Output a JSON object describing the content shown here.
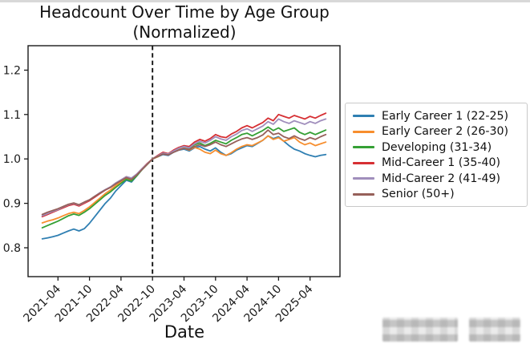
{
  "chart_data": {
    "type": "line",
    "title": "Headcount Over Time by Age Group",
    "subtitle": "(Normalized)",
    "xlabel": "Date",
    "ylabel": "",
    "ylim": [
      0.735,
      1.255
    ],
    "yticks": [
      0.8,
      0.9,
      1.0,
      1.1,
      1.2
    ],
    "grid": false,
    "legend_position": "right-outside",
    "x": [
      "2021-01",
      "2021-02",
      "2021-03",
      "2021-04",
      "2021-05",
      "2021-06",
      "2021-07",
      "2021-08",
      "2021-09",
      "2021-10",
      "2021-11",
      "2021-12",
      "2022-01",
      "2022-02",
      "2022-03",
      "2022-04",
      "2022-05",
      "2022-06",
      "2022-07",
      "2022-08",
      "2022-09",
      "2022-10",
      "2022-11",
      "2022-12",
      "2023-01",
      "2023-02",
      "2023-03",
      "2023-04",
      "2023-05",
      "2023-06",
      "2023-07",
      "2023-08",
      "2023-09",
      "2023-10",
      "2023-11",
      "2023-12",
      "2024-01",
      "2024-02",
      "2024-03",
      "2024-04",
      "2024-05",
      "2024-06",
      "2024-07",
      "2024-08",
      "2024-09",
      "2024-10",
      "2024-11",
      "2024-12",
      "2025-01",
      "2025-02",
      "2025-03",
      "2025-04",
      "2025-05",
      "2025-06",
      "2025-07"
    ],
    "xtick_labels": [
      "2021-04",
      "2021-10",
      "2022-04",
      "2022-10",
      "2023-04",
      "2023-10",
      "2024-04",
      "2024-10",
      "2025-04"
    ],
    "xtick_indices": [
      3,
      9,
      15,
      21,
      27,
      33,
      39,
      45,
      51
    ],
    "reference_line": {
      "type": "vertical-dashed",
      "x_index": 21,
      "x_label": "2022-10",
      "color": "#111111"
    },
    "series": [
      {
        "name": "Early Career 1 (22-25)",
        "color": "#2f7fb2",
        "values": [
          0.82,
          0.822,
          0.825,
          0.828,
          0.833,
          0.838,
          0.842,
          0.838,
          0.843,
          0.855,
          0.87,
          0.885,
          0.9,
          0.912,
          0.928,
          0.94,
          0.952,
          0.948,
          0.962,
          0.976,
          0.988,
          1.0,
          1.005,
          1.01,
          1.008,
          1.015,
          1.02,
          1.022,
          1.018,
          1.025,
          1.028,
          1.022,
          1.018,
          1.025,
          1.015,
          1.008,
          1.012,
          1.02,
          1.025,
          1.03,
          1.028,
          1.035,
          1.042,
          1.052,
          1.046,
          1.05,
          1.04,
          1.03,
          1.022,
          1.018,
          1.012,
          1.008,
          1.005,
          1.008,
          1.01
        ]
      },
      {
        "name": "Early Career 2 (26-30)",
        "color": "#f78e2e",
        "values": [
          0.856,
          0.86,
          0.863,
          0.867,
          0.872,
          0.877,
          0.88,
          0.877,
          0.884,
          0.892,
          0.902,
          0.912,
          0.922,
          0.93,
          0.94,
          0.948,
          0.956,
          0.953,
          0.964,
          0.976,
          0.988,
          1.0,
          1.005,
          1.012,
          1.01,
          1.016,
          1.021,
          1.024,
          1.02,
          1.026,
          1.022,
          1.015,
          1.012,
          1.02,
          1.012,
          1.008,
          1.014,
          1.022,
          1.028,
          1.032,
          1.03,
          1.036,
          1.042,
          1.052,
          1.044,
          1.048,
          1.04,
          1.044,
          1.048,
          1.038,
          1.032,
          1.036,
          1.03,
          1.034,
          1.038
        ]
      },
      {
        "name": "Developing (31-34)",
        "color": "#35a035",
        "values": [
          0.845,
          0.85,
          0.855,
          0.86,
          0.866,
          0.872,
          0.876,
          0.873,
          0.88,
          0.888,
          0.898,
          0.908,
          0.918,
          0.926,
          0.936,
          0.945,
          0.954,
          0.95,
          0.962,
          0.976,
          0.988,
          1.0,
          1.006,
          1.012,
          1.01,
          1.018,
          1.024,
          1.028,
          1.024,
          1.032,
          1.036,
          1.03,
          1.035,
          1.042,
          1.038,
          1.034,
          1.042,
          1.048,
          1.055,
          1.058,
          1.052,
          1.058,
          1.064,
          1.072,
          1.064,
          1.07,
          1.062,
          1.066,
          1.07,
          1.06,
          1.055,
          1.06,
          1.055,
          1.06,
          1.065
        ]
      },
      {
        "name": "Mid-Career 1 (35-40)",
        "color": "#d62f33",
        "values": [
          0.87,
          0.875,
          0.88,
          0.885,
          0.89,
          0.895,
          0.898,
          0.894,
          0.9,
          0.906,
          0.914,
          0.922,
          0.93,
          0.936,
          0.945,
          0.952,
          0.96,
          0.956,
          0.966,
          0.978,
          0.99,
          1.0,
          1.008,
          1.015,
          1.012,
          1.02,
          1.026,
          1.03,
          1.028,
          1.038,
          1.044,
          1.04,
          1.046,
          1.055,
          1.05,
          1.048,
          1.056,
          1.062,
          1.07,
          1.075,
          1.07,
          1.076,
          1.082,
          1.092,
          1.086,
          1.1,
          1.096,
          1.092,
          1.098,
          1.094,
          1.09,
          1.096,
          1.092,
          1.098,
          1.103
        ]
      },
      {
        "name": "Mid-Career 2 (41-49)",
        "color": "#a08ebc",
        "values": [
          0.872,
          0.877,
          0.882,
          0.886,
          0.892,
          0.897,
          0.9,
          0.896,
          0.902,
          0.908,
          0.916,
          0.924,
          0.931,
          0.937,
          0.946,
          0.953,
          0.96,
          0.957,
          0.966,
          0.978,
          0.989,
          1.0,
          1.007,
          1.013,
          1.011,
          1.018,
          1.024,
          1.028,
          1.025,
          1.034,
          1.04,
          1.036,
          1.042,
          1.05,
          1.045,
          1.042,
          1.05,
          1.056,
          1.064,
          1.068,
          1.062,
          1.068,
          1.074,
          1.084,
          1.078,
          1.09,
          1.084,
          1.08,
          1.086,
          1.082,
          1.078,
          1.084,
          1.08,
          1.086,
          1.09
        ]
      },
      {
        "name": "Senior (50+)",
        "color": "#96605a",
        "values": [
          0.875,
          0.88,
          0.884,
          0.888,
          0.893,
          0.898,
          0.901,
          0.897,
          0.903,
          0.908,
          0.916,
          0.923,
          0.93,
          0.936,
          0.944,
          0.951,
          0.958,
          0.954,
          0.964,
          0.976,
          0.988,
          1.0,
          1.006,
          1.011,
          1.009,
          1.015,
          1.02,
          1.024,
          1.021,
          1.028,
          1.032,
          1.028,
          1.032,
          1.038,
          1.032,
          1.028,
          1.034,
          1.04,
          1.045,
          1.048,
          1.044,
          1.048,
          1.054,
          1.065,
          1.055,
          1.058,
          1.05,
          1.046,
          1.052,
          1.046,
          1.042,
          1.048,
          1.044,
          1.05,
          1.055
        ]
      }
    ]
  }
}
